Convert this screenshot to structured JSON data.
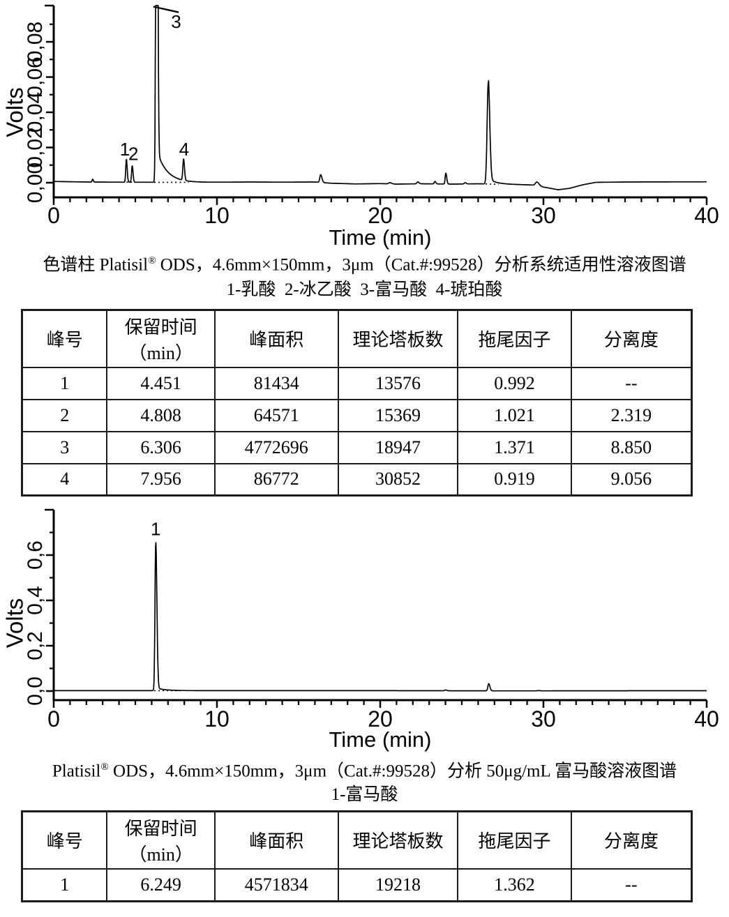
{
  "page": {
    "background": "#ffffff",
    "ink_color": "#000000"
  },
  "figures": [
    {
      "caption": {
        "pre": "色谱柱 Platisil",
        "sup": "®",
        "post": " ODS，4.6mm×150mm，3μm（Cat.#:99528）分析系统适用性溶液图谱"
      },
      "legend": "1-乳酸  2-冰乙酸  3-富马酸  4-琥珀酸"
    },
    {
      "caption": {
        "pre": "Platisil",
        "sup": "®",
        "post": " ODS，4.6mm×150mm，3μm（Cat.#:99528）分析 50μg/mL 富马酸溶液图谱"
      },
      "legend": "1-富马酸"
    }
  ],
  "chart_data": [
    {
      "type": "line",
      "kind": "chromatogram",
      "title": "系统适用性溶液图谱",
      "xlabel": "Time (min)",
      "ylabel": "Volts",
      "xlim": [
        0,
        40
      ],
      "ylim": [
        0,
        0.1006
      ],
      "x_major_ticks": [
        0,
        10,
        20,
        30,
        40
      ],
      "x_tick_labels": [
        "0",
        "10",
        "20",
        "30",
        "40"
      ],
      "x_minor_step": 1,
      "y_major_ticks": [
        0,
        0.02,
        0.04,
        0.06,
        0.08
      ],
      "y_tick_labels": [
        "0,00",
        "0,02",
        "0,04",
        "0,06",
        "0,08"
      ],
      "y_minor_step": 0.01,
      "clip_v": 0.1006,
      "grid": false,
      "peaks": [
        {
          "t": 2.38,
          "h": 0.0016,
          "sl": 0.03,
          "sr": 0.045
        },
        {
          "label": "1",
          "t": 4.451,
          "h": 0.0131,
          "sl": 0.038,
          "sr": 0.05,
          "label_t": 4.36,
          "label_v": 0.019
        },
        {
          "label": "2",
          "t": 4.808,
          "h": 0.0094,
          "sl": 0.038,
          "sr": 0.05,
          "label_t": 4.88,
          "label_v": 0.0165
        },
        {
          "label": "3",
          "t": 6.306,
          "h": 0.4,
          "sl": 0.045,
          "sr": 0.055,
          "tail_a": 0.0185,
          "tail_d": 0.6,
          "label_t": 7.5,
          "label_v": 0.0915
        },
        {
          "label": "4",
          "t": 7.956,
          "h": 0.0121,
          "sl": 0.045,
          "sr": 0.055,
          "label_t": 7.99,
          "label_v": 0.019
        },
        {
          "t": 16.35,
          "h": 0.0044,
          "sl": 0.05,
          "sr": 0.08
        },
        {
          "t": 20.6,
          "h": 0.0007,
          "sl": 0.08,
          "sr": 0.1
        },
        {
          "t": 22.3,
          "h": 0.0011,
          "sl": 0.05,
          "sr": 0.07
        },
        {
          "t": 23.35,
          "h": 0.0014,
          "sl": 0.04,
          "sr": 0.06
        },
        {
          "t": 24.02,
          "h": 0.0062,
          "sl": 0.04,
          "sr": 0.055
        },
        {
          "t": 25.2,
          "h": 0.0007,
          "sl": 0.05,
          "sr": 0.07
        },
        {
          "t": 26.62,
          "h": 0.0572,
          "sl": 0.07,
          "sr": 0.09,
          "tail_a": 0.003,
          "tail_d": 0.5
        },
        {
          "t": 29.6,
          "h": 0.0022,
          "sl": 0.09,
          "sr": 0.13
        }
      ],
      "baseline_nodes": [
        [
          0,
          0.0007
        ],
        [
          2,
          0.0004
        ],
        [
          4,
          0.0003
        ],
        [
          9,
          0.0002
        ],
        [
          12,
          0.0004
        ],
        [
          14,
          0.0003
        ],
        [
          16,
          0.0004
        ],
        [
          17,
          -0.0003
        ],
        [
          18.5,
          -0.0007
        ],
        [
          20,
          -0.0005
        ],
        [
          21,
          -0.0008
        ],
        [
          22.5,
          -0.0006
        ],
        [
          24.5,
          -0.0008
        ],
        [
          26,
          -0.0006
        ],
        [
          27.2,
          -0.0009
        ],
        [
          28.5,
          -0.0011
        ],
        [
          29.3,
          -0.0013
        ],
        [
          30.2,
          -0.0028
        ],
        [
          30.9,
          -0.004
        ],
        [
          31.6,
          -0.0032
        ],
        [
          32.4,
          -0.0012
        ],
        [
          33.2,
          0.0002
        ],
        [
          35,
          0.0004
        ],
        [
          40,
          0.0005
        ]
      ],
      "dotted_segments": [
        [
          4.2,
          5.1
        ],
        [
          5.9,
          7.72
        ],
        [
          7.72,
          8.3
        ],
        [
          26.2,
          27.3
        ]
      ],
      "annotation_lines": [
        {
          "t1": 6.1,
          "v1": 0.1,
          "t2": 7.65,
          "v2": 0.0968
        }
      ]
    },
    {
      "type": "line",
      "kind": "chromatogram",
      "title": "50μg/mL 富马酸溶液图谱",
      "xlabel": "Time (min)",
      "ylabel": "Volts",
      "xlim": [
        0,
        40
      ],
      "ylim": [
        0,
        0.8
      ],
      "x_major_ticks": [
        0,
        10,
        20,
        30,
        40
      ],
      "x_tick_labels": [
        "0",
        "10",
        "20",
        "30",
        "40"
      ],
      "x_minor_step": 1,
      "y_major_ticks": [
        0,
        0.2,
        0.4,
        0.6
      ],
      "y_tick_labels": [
        "0,0",
        "0,2",
        "0,4",
        "0,6"
      ],
      "y_minor_step": 0.1,
      "clip_v": 0.8,
      "grid": false,
      "peaks": [
        {
          "label": "1",
          "t": 6.249,
          "h": 0.649,
          "sl": 0.045,
          "sr": 0.07,
          "tail_a": 0.012,
          "tail_d": 0.55,
          "label_t": 6.25,
          "label_v": 0.715
        },
        {
          "t": 24.0,
          "h": 0.0035,
          "sl": 0.05,
          "sr": 0.07
        },
        {
          "t": 26.65,
          "h": 0.032,
          "sl": 0.05,
          "sr": 0.07
        },
        {
          "t": 29.7,
          "h": 0.0012,
          "sl": 0.08,
          "sr": 0.1
        }
      ],
      "baseline_nodes": [
        [
          0,
          0.002
        ],
        [
          6,
          0.002
        ],
        [
          9,
          0.0018
        ],
        [
          20,
          0.0018
        ],
        [
          24,
          0.0014
        ],
        [
          27,
          0.001
        ],
        [
          29.5,
          0.0008
        ],
        [
          31,
          0.0012
        ],
        [
          40,
          0.0016
        ]
      ],
      "dotted_segments": [
        [
          5.9,
          7.8
        ]
      ],
      "annotation_lines": []
    }
  ],
  "tables": [
    {
      "headers": [
        "峰号",
        "保留时间\n（min）",
        "峰面积",
        "理论塔板数",
        "拖尾因子",
        "分离度"
      ],
      "rows": [
        [
          "1",
          "4.451",
          "81434",
          "13576",
          "0.992",
          "--"
        ],
        [
          "2",
          "4.808",
          "64571",
          "15369",
          "1.021",
          "2.319"
        ],
        [
          "3",
          "6.306",
          "4772696",
          "18947",
          "1.371",
          "8.850"
        ],
        [
          "4",
          "7.956",
          "86772",
          "30852",
          "0.919",
          "9.056"
        ]
      ]
    },
    {
      "headers": [
        "峰号",
        "保留时间\n（min）",
        "峰面积",
        "理论塔板数",
        "拖尾因子",
        "分离度"
      ],
      "rows": [
        [
          "1",
          "6.249",
          "4571834",
          "19218",
          "1.362",
          "--"
        ]
      ]
    }
  ]
}
